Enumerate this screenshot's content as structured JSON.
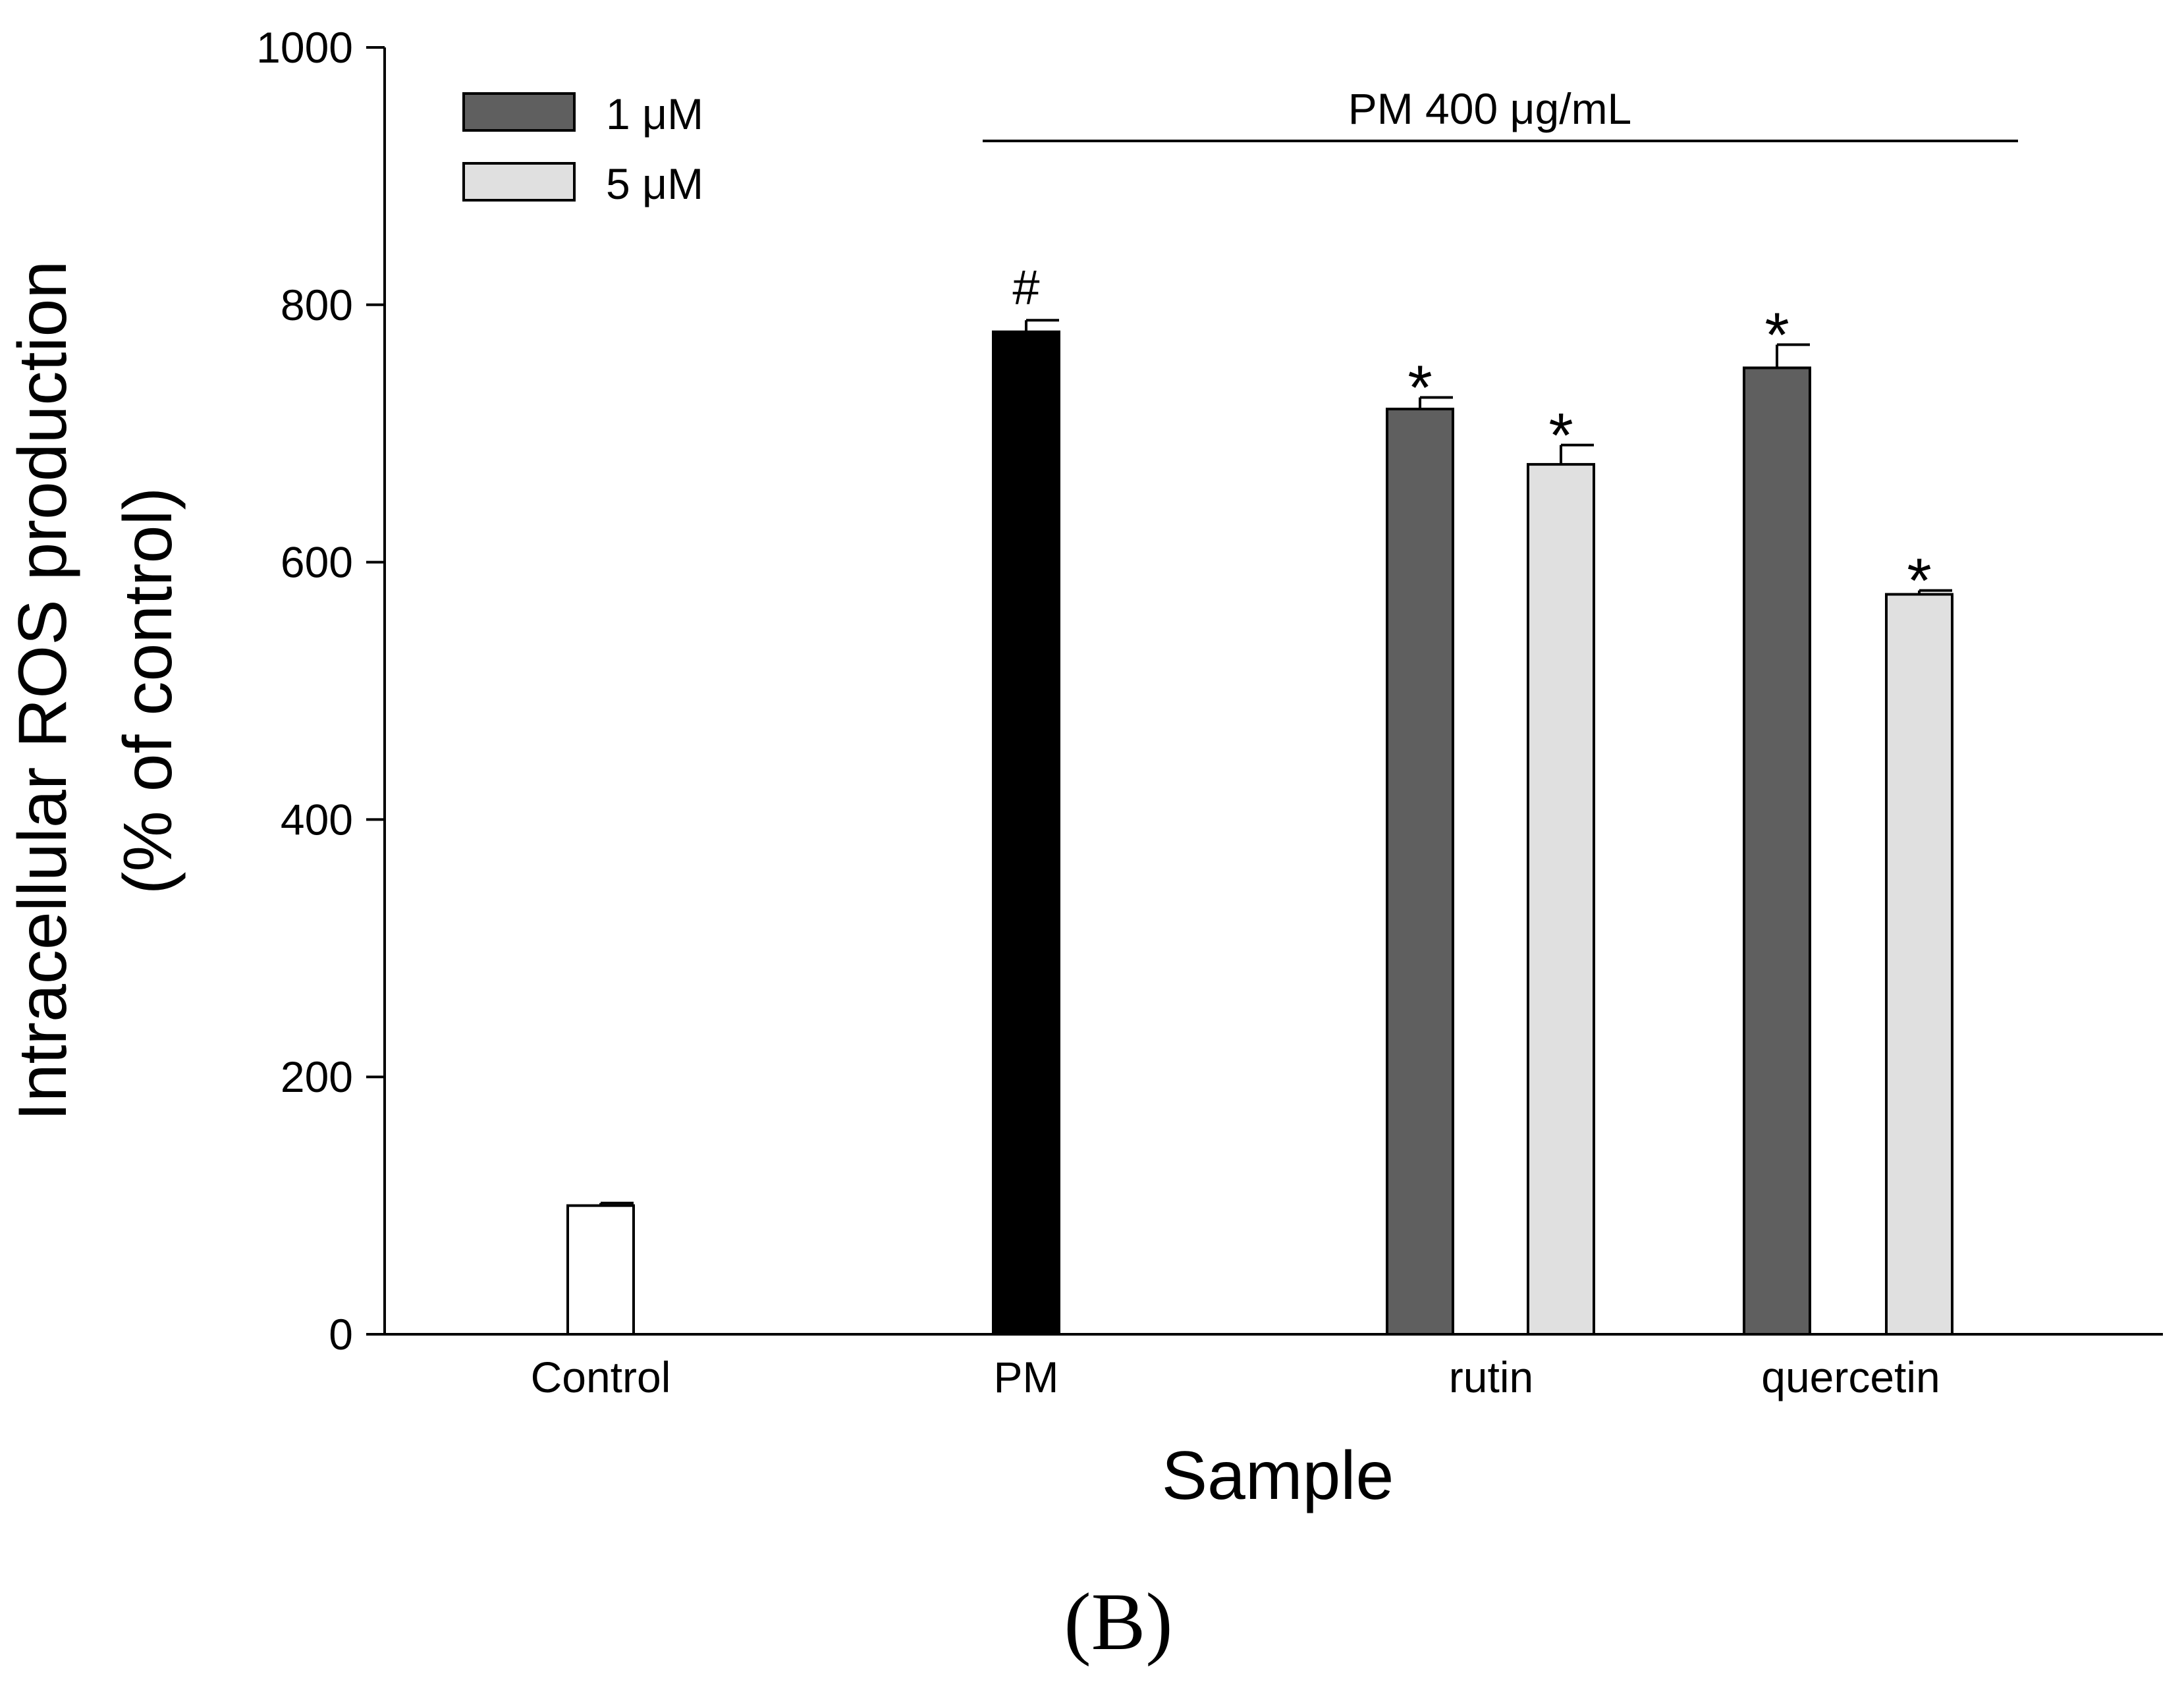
{
  "chart_data": {
    "type": "bar",
    "title": "",
    "panel_label": "(B)",
    "xlabel": "Sample",
    "ylabel_line1": "Intracellular ROS production",
    "ylabel_line2": "(% of control)",
    "ylim": [
      0,
      1000
    ],
    "yticks": [
      0,
      200,
      400,
      600,
      800,
      1000
    ],
    "bracket_label": "PM 400 μg/mL",
    "categories": [
      "Control",
      "PM",
      "rutin",
      "quercetin"
    ],
    "legend": [
      {
        "label": "1 μM",
        "color": "#5f5f5f"
      },
      {
        "label": "5 μM",
        "color": "#e0e0e0"
      }
    ],
    "bars": [
      {
        "category": "Control",
        "series": "single",
        "value": 100,
        "error": 2,
        "color": "#ffffff",
        "annotation": ""
      },
      {
        "category": "PM",
        "series": "single",
        "value": 779,
        "error": 9,
        "color": "#000000",
        "annotation": "#"
      },
      {
        "category": "rutin",
        "series": "1 μM",
        "value": 719,
        "error": 9,
        "color": "#5f5f5f",
        "annotation": "*"
      },
      {
        "category": "rutin",
        "series": "5 μM",
        "value": 676,
        "error": 15,
        "color": "#e0e0e0",
        "annotation": "*"
      },
      {
        "category": "quercetin",
        "series": "1 μM",
        "value": 751,
        "error": 18,
        "color": "#5f5f5f",
        "annotation": "*"
      },
      {
        "category": "quercetin",
        "series": "5 μM",
        "value": 575,
        "error": 3,
        "color": "#e0e0e0",
        "annotation": "*"
      }
    ]
  }
}
